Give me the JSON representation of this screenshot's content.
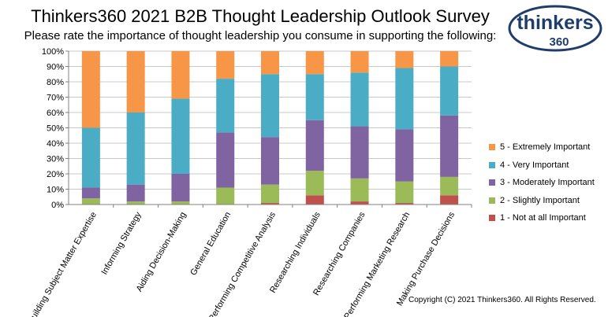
{
  "title": "Thinkers360 2021 B2B Thought Leadership Outlook Survey",
  "subtitle": "Please rate the importance of thought leadership you consume in supporting the following:",
  "logo": {
    "line1": "thinkers",
    "line2": "360",
    "color": "#1f3d6b"
  },
  "copyright": "Copyright (C) 2021 Thinkers360. All Rights Reserved.",
  "chart_data": {
    "type": "bar",
    "stacked": true,
    "categories": [
      "Building Subject Matter Expertise",
      "Informing Strategy",
      "Aiding Decision-Making",
      "General Education",
      "Performing Competitive Analysis",
      "Researching Individuals",
      "Researching Companies",
      "Performing Marketing Research",
      "Making Purchase Decisions"
    ],
    "series": [
      {
        "name": "1 - Not at all Important",
        "color": "#c0504d",
        "values": [
          0,
          0,
          0,
          0,
          1,
          6,
          2,
          1,
          6
        ]
      },
      {
        "name": "2 - Slightly Important",
        "color": "#9bbb59",
        "values": [
          4,
          2,
          2,
          11,
          12,
          16,
          15,
          14,
          12
        ]
      },
      {
        "name": "3 - Moderately Important",
        "color": "#8064a2",
        "values": [
          7,
          11,
          18,
          36,
          31,
          33,
          34,
          34,
          40
        ]
      },
      {
        "name": "4 - Very Important",
        "color": "#4bacc6",
        "values": [
          39,
          47,
          49,
          35,
          41,
          30,
          35,
          40,
          32
        ]
      },
      {
        "name": "5 - Extremely Important",
        "color": "#f79646",
        "values": [
          50,
          40,
          31,
          18,
          15,
          15,
          14,
          11,
          10
        ]
      }
    ],
    "y_ticks": [
      "0%",
      "10%",
      "20%",
      "30%",
      "40%",
      "50%",
      "60%",
      "70%",
      "80%",
      "90%",
      "100%"
    ],
    "ylim": [
      0,
      100
    ],
    "grid": true,
    "legend_position": "right",
    "legend_order": [
      4,
      3,
      2,
      1,
      0
    ]
  }
}
